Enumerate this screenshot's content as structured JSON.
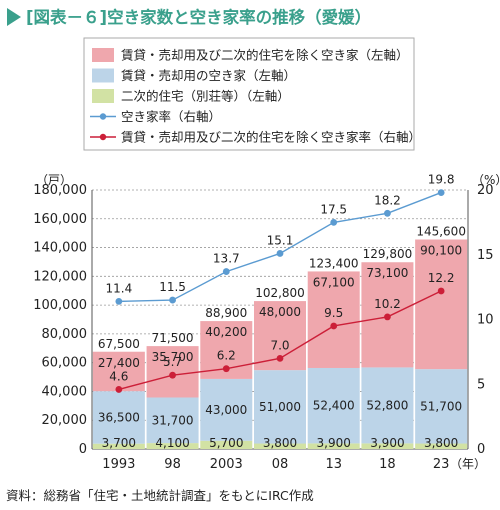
{
  "title": "[図表－６]空き家数と空き家率の推移（愛媛）",
  "source": "資料：総務省「住宅・土地統計調査」をもとにIRC作成",
  "colors": {
    "title": "#3aa08c",
    "rental_excluded_bar": "#efa7ad",
    "rental_bar": "#bcd4e8",
    "secondary_bar": "#d2e2a4",
    "rate_line": "#5b9bd1",
    "excluded_rate_line": "#cc1f38",
    "grid": "#999999"
  },
  "legend": [
    {
      "label": "賃貸・売却用及び二次的住宅を除く空き家（左軸）",
      "kind": "bar",
      "series": "excluded"
    },
    {
      "label": "賃貸・売却用の空き家（左軸）",
      "kind": "bar",
      "series": "rental"
    },
    {
      "label": "二次的住宅（別荘等）（左軸）",
      "kind": "bar",
      "series": "secondary"
    },
    {
      "label": "空き家率（右軸）",
      "kind": "line",
      "series": "rate"
    },
    {
      "label": "賃貸・売却用及び二次的住宅を除く空き家率（右軸）",
      "kind": "line",
      "series": "excluded_rate"
    }
  ],
  "chart_data": {
    "type": "bar",
    "stacked": true,
    "categories": [
      "1993",
      "98",
      "2003",
      "08",
      "13",
      "18",
      "23"
    ],
    "x_unit": "（年）",
    "left_axis": {
      "unit": "（戸）",
      "ylim": [
        0,
        180000
      ],
      "ticks": [
        "0",
        "20,000",
        "40,000",
        "60,000",
        "80,000",
        "100,000",
        "120,000",
        "140,000",
        "160,000",
        "180,000"
      ],
      "tick_values": [
        0,
        20000,
        40000,
        60000,
        80000,
        100000,
        120000,
        140000,
        160000,
        180000
      ]
    },
    "right_axis": {
      "unit": "（%）",
      "ylim": [
        0,
        20
      ],
      "ticks": [
        "0",
        "5",
        "10",
        "15",
        "20"
      ],
      "tick_values": [
        0,
        5,
        10,
        15,
        20
      ]
    },
    "bar_series": [
      {
        "key": "secondary",
        "name": "二次的住宅（別荘等）",
        "values": [
          3700,
          4100,
          5700,
          3800,
          3900,
          3900,
          3800
        ],
        "labels": [
          "3,700",
          "4,100",
          "5,700",
          "3,800",
          "3,900",
          "3,900",
          "3,800"
        ]
      },
      {
        "key": "rental",
        "name": "賃貸・売却用の空き家",
        "values": [
          36500,
          31700,
          43000,
          51000,
          52400,
          52800,
          51700
        ],
        "labels": [
          "36,500",
          "31,700",
          "43,000",
          "51,000",
          "52,400",
          "52,800",
          "51,700"
        ]
      },
      {
        "key": "excluded",
        "name": "賃貸・売却用及び二次的住宅を除く空き家",
        "values": [
          27400,
          35700,
          40200,
          48000,
          67100,
          73100,
          90100
        ],
        "labels": [
          "27,400",
          "35,700",
          "40,200",
          "48,000",
          "67,100",
          "73,100",
          "90,100"
        ]
      }
    ],
    "totals": [
      67500,
      71500,
      88900,
      102800,
      123400,
      129800,
      145600
    ],
    "total_labels": [
      "67,500",
      "71,500",
      "88,900",
      "102,800",
      "123,400",
      "129,800",
      "145,600"
    ],
    "line_series": [
      {
        "key": "rate",
        "name": "空き家率",
        "values": [
          11.4,
          11.5,
          13.7,
          15.1,
          17.5,
          18.2,
          19.8
        ],
        "labels": [
          "11.4",
          "11.5",
          "13.7",
          "15.1",
          "17.5",
          "18.2",
          "19.8"
        ]
      },
      {
        "key": "excluded_rate",
        "name": "賃貸・売却用及び二次的住宅を除く空き家率",
        "values": [
          4.6,
          5.7,
          6.2,
          7.0,
          9.5,
          10.2,
          12.2
        ],
        "labels": [
          "4.6",
          "5.7",
          "6.2",
          "7.0",
          "9.5",
          "10.2",
          "12.2"
        ]
      }
    ]
  }
}
